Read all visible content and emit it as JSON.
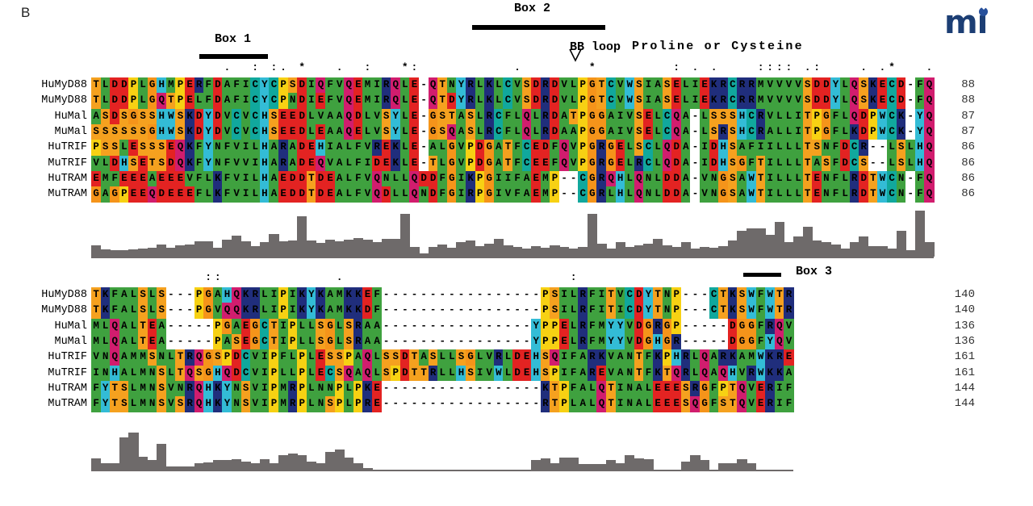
{
  "figure_label": "B",
  "logo": {
    "text": "mı",
    "color": "#1c3e74",
    "dot_color": "#27509b"
  },
  "annotations": {
    "box1": "Box 1",
    "box2": "Box 2",
    "box3": "Box 3",
    "bb_loop": "BB loop",
    "bb_desc": "Proline or Cysteine"
  },
  "row_labels": [
    "HuMyD88",
    "MuMyD88",
    "HuMal",
    "MuMal",
    "HuTRIF",
    "MuTRIF",
    "HuTRAM",
    "MuTRAM"
  ],
  "palette": {
    "A": "#3fa13f",
    "V": "#3fa13f",
    "L": "#3fa13f",
    "I": "#3fa13f",
    "M": "#3fa13f",
    "F": "#3fa13f",
    "N": "#3fa13f",
    "S": "#f5a11f",
    "T": "#f5a11f",
    "G": "#f5941a",
    "P": "#f7d113",
    "D": "#e32322",
    "E": "#e32322",
    "K": "#202e7c",
    "R": "#202e7c",
    "Q": "#d11d6e",
    "C": "#11a89d",
    "H": "#33bcd6",
    "Y": "#33bcd6",
    "W": "#33bcd6",
    "-": "#ffffff"
  },
  "histogram_color": "#6e6a6a",
  "block1": {
    "sequences": [
      "TLDDPLGHMPERFDAFICYCPSDIQFVQEMIRQLE-QTNYRLKLCVSDRDVLPGTCVWSIASELIEKRCRRMVVVVSDDYLQSKECD-FQ",
      "TLDDPLGQTPELFDAFICYCPNDIEFVQEMIRQLE-QTDYRLKLCVSDRDVLPGTCVWSIASELIEKRCRRMVVVVSDDYLQSKECD-FQ",
      "ASDSGSSHWSKDYDVCVCHSEEDLVAAQDLVSYLE-GSTASLRCFLQLRDATPGGAIVSELCQA-LSSSHCRVLLITPGFLQDPWCK-YQ",
      "SSSSSSGHWSKDYDVCVCHSEEDLEAAQELVSYLE-GSQASLRCFLQLRDAAPGGAIVSELCQA-LSRSHCRALLITPGFLKDPWCK-YQ",
      "PSSLESSSEQKFYNFVILHARADEHIALFVREKLE-ALGVPDGATFCEDFQVPGRGELSCLQDA-IDHSAFIILLLTSNFDCR--LSLHQ",
      "VLDHSETSDQKFYNFVVIHARADEQVALFIDEKLE-TLGVPDGATFCEEFQVPGRGELRCLQDA-IDHSGFTILLLTASFDCS--LSLHQ",
      "EMFEEEAEEEVFLKFVILHAEDDTDEALFVQNLLQDDFGIKPGIIFAEMP--CGRQHLQNLDDA-VNGSAWTILLLTENFLRDTWCN-FQ",
      "GAGPEEQDEEEFLKFVILHAEDDTDEALFVQDLLQNDFGIRPGIVFAEMP--CGRLHLQNLDDA-VNGSAWTILLLTENFLRDTWCN-FQ"
    ],
    "end_numbers": [
      88,
      88,
      87,
      87,
      86,
      86,
      86,
      86
    ],
    "conservation": [
      [
        15,
        "."
      ],
      [
        18,
        ":"
      ],
      [
        20,
        ":"
      ],
      [
        21,
        "."
      ],
      [
        23,
        "*"
      ],
      [
        27,
        "."
      ],
      [
        30,
        ":"
      ],
      [
        34,
        "*"
      ],
      [
        35,
        ":"
      ],
      [
        46,
        "."
      ],
      [
        54,
        "*"
      ],
      [
        63,
        ":"
      ],
      [
        65,
        "."
      ],
      [
        67,
        "."
      ],
      [
        72,
        ":"
      ],
      [
        73,
        ":"
      ],
      [
        74,
        ":"
      ],
      [
        75,
        ":"
      ],
      [
        77,
        "."
      ],
      [
        78,
        ":"
      ],
      [
        83,
        "."
      ],
      [
        85,
        "."
      ],
      [
        86,
        "*"
      ],
      [
        90,
        "."
      ]
    ],
    "bb_loop_column": 53,
    "histogram": [
      14,
      9,
      8,
      8,
      9,
      10,
      11,
      15,
      11,
      14,
      15,
      19,
      19,
      11,
      21,
      26,
      19,
      13,
      18,
      28,
      19,
      20,
      50,
      20,
      17,
      21,
      19,
      21,
      23,
      21,
      18,
      22,
      22,
      53,
      12,
      4,
      12,
      15,
      11,
      18,
      20,
      13,
      16,
      22,
      14,
      12,
      10,
      13,
      11,
      14,
      12,
      10,
      12,
      53,
      16,
      10,
      18,
      12,
      14,
      16,
      22,
      14,
      12,
      18,
      10,
      12,
      11,
      13,
      20,
      32,
      35,
      35,
      27,
      43,
      18,
      25,
      37,
      20,
      18,
      15,
      10,
      18,
      25,
      13,
      13,
      10,
      32,
      8,
      57,
      18
    ]
  },
  "block2": {
    "sequences": [
      "TKFALSLS---PGAHQKRLIPIKYKAMKKEF-----------------PSILRFITVCDYTNP---CTKSWFWTR",
      "TKFALSLS---PGVQQKRLIPIKYKAMKKDF-----------------PSILRFITICDYTNP---CTKSWFWTR",
      "MLQALTEA-----PGAEGCTIPLLSGLSRAA----------------YPPELRFMYYVDGRGP-----DGGFRQV",
      "MLQALTEA-----PASEGCTIPLLSGLSRAA----------------YPPELRFMYYVDGHGR-----DGGFYQV",
      "VNQAMMSNLTRQGSPDCVIPFLPLESSPAQLSSDTASLLSGLVRLDEHSQIFARKVANTFKPHRLQARKAMWKRE",
      "INHALMNSLTQSGHQDCVIPLLPLECSQAQLSPDTTRLLHSIVWLDEHSPIFAREVANTFKTQRLQAQHVRWKKA",
      "FYTSLMNSVNRQHKYNSVIPMRPLNNPLPKE-----------------KTPFALQTINALEEESRGFPTQVERIF",
      "FYTSLMNSVSRQHKYNSVIPMRPLNSPLPRE-----------------RTPLALQTINALEEESQGFSTQVERIF"
    ],
    "end_numbers": [
      140,
      140,
      136,
      136,
      161,
      161,
      144,
      144
    ],
    "conservation": [
      [
        13,
        ":"
      ],
      [
        14,
        ":"
      ],
      [
        27,
        "."
      ],
      [
        52,
        ":"
      ]
    ],
    "histogram": [
      14,
      8,
      8,
      40,
      46,
      16,
      12,
      32,
      4,
      4,
      4,
      8,
      9,
      12,
      12,
      13,
      10,
      8,
      13,
      8,
      18,
      20,
      18,
      10,
      8,
      22,
      25,
      15,
      8,
      2,
      0,
      0,
      0,
      0,
      0,
      0,
      0,
      0,
      0,
      0,
      0,
      0,
      0,
      0,
      0,
      0,
      0,
      12,
      14,
      8,
      15,
      15,
      7,
      7,
      7,
      12,
      8,
      18,
      14,
      13,
      0,
      0,
      0,
      10,
      18,
      12,
      0,
      8,
      8,
      13,
      8,
      0,
      0,
      0,
      0
    ]
  }
}
